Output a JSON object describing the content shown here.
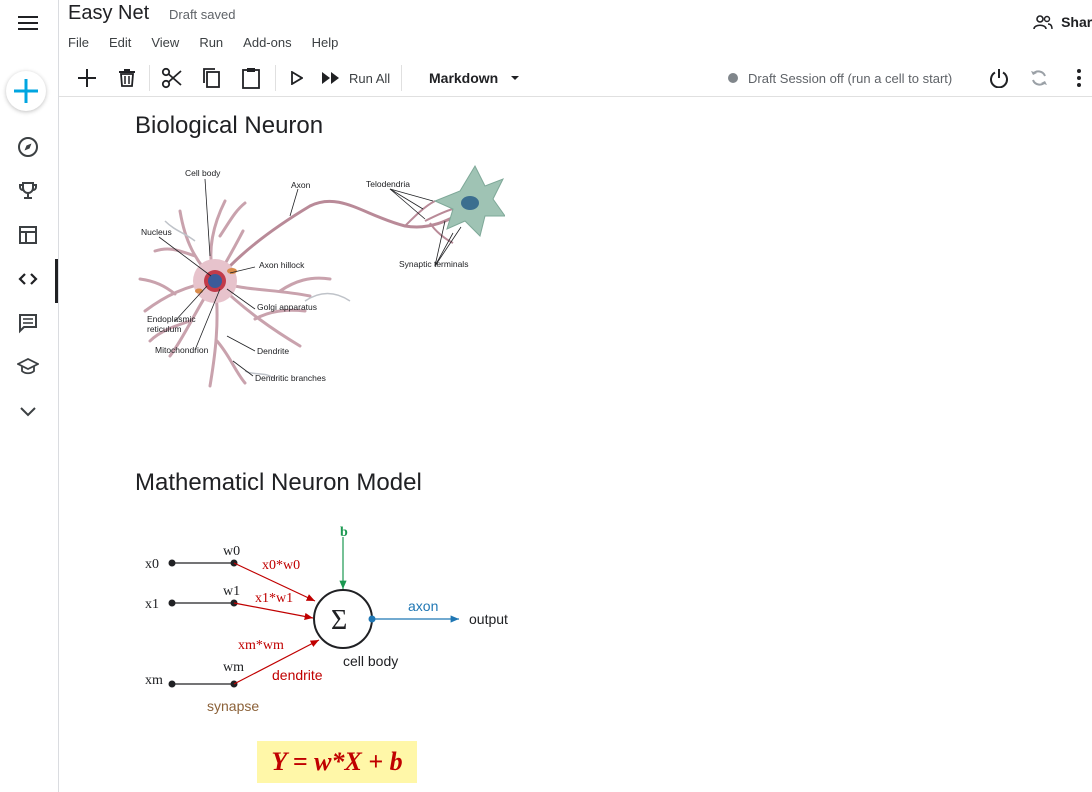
{
  "app": {
    "title": "Easy Net",
    "status": "Draft saved",
    "share_label": "Share"
  },
  "menu": [
    "File",
    "Edit",
    "View",
    "Run",
    "Add-ons",
    "Help"
  ],
  "toolbar": {
    "run_all_label": "Run All",
    "cell_type": "Markdown",
    "session_status": "Draft Session off (run a cell to start)"
  },
  "sidebar": {
    "icons": [
      "compass-icon",
      "trophy-icon",
      "table-icon",
      "code-icon",
      "comment-icon",
      "graduation-cap-icon",
      "chevron-down-icon"
    ]
  },
  "notebook": {
    "heading1": "Biological Neuron",
    "heading2": "Mathematicl Neuron Model",
    "formula": "Y = w*X + b"
  },
  "neuron_labels": {
    "cell_body": "Cell body",
    "axon": "Axon",
    "telodendria": "Telodendria",
    "nucleus": "Nucleus",
    "axon_hillock": "Axon hillock",
    "synaptic_terminals": "Synaptic terminals",
    "golgi": "Golgi apparatus",
    "er1": "Endoplasmic",
    "er2": "reticulum",
    "mitochondrion": "Mitochondrion",
    "dendrite": "Dendrite",
    "dendritic_branches": "Dendritic branches"
  },
  "model": {
    "bias": "b",
    "x0": "x0",
    "x1": "x1",
    "xm": "xm",
    "w0": "w0",
    "w1": "w1",
    "wm": "wm",
    "p0": "x0*w0",
    "p1": "x1*w1",
    "pm": "xm*wm",
    "sigma": "Σ",
    "axon": "axon",
    "output": "output",
    "cell_body": "cell body",
    "dendrite": "dendrite",
    "synapse": "synapse"
  },
  "colors": {
    "accent_blue": "#1a73e8",
    "plus_blue": "#00a5e0",
    "red": "#c00000",
    "green": "#1a9850",
    "axon_blue": "#1f77b4",
    "synapse_brown": "#8c6239",
    "formula_bg": "#fff7a8"
  }
}
